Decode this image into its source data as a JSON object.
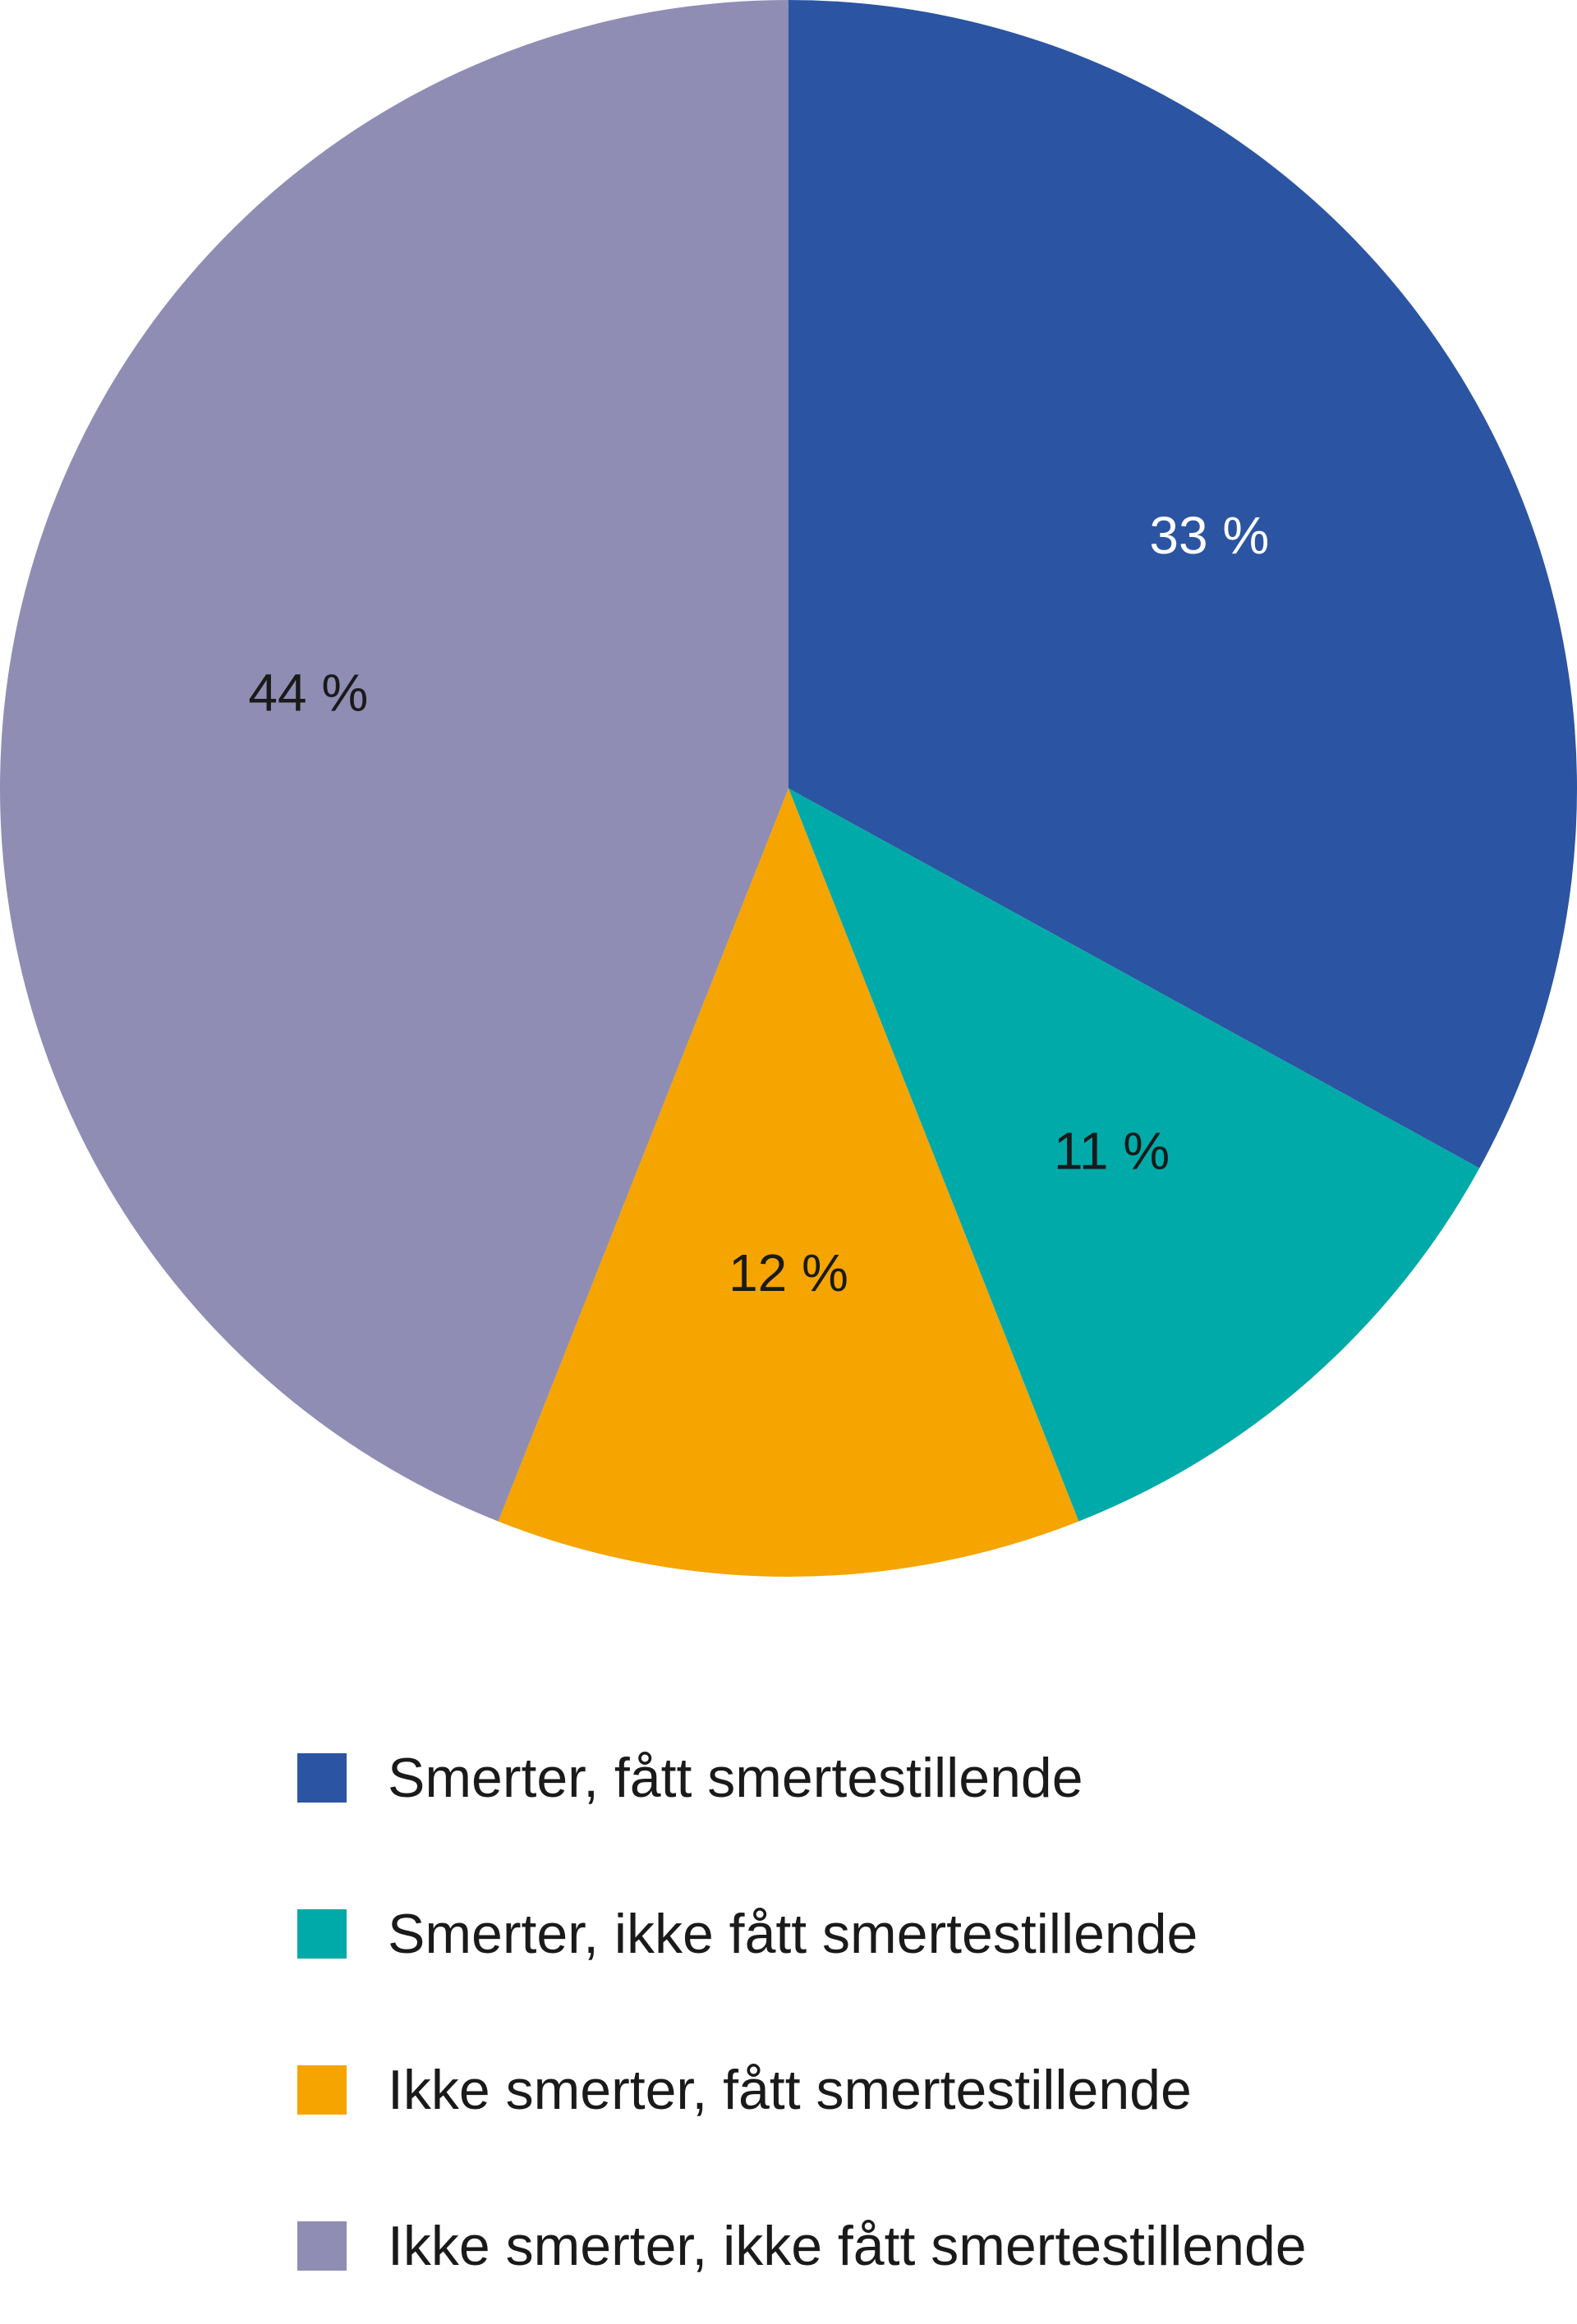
{
  "chart_data": {
    "type": "pie",
    "title": "",
    "start_angle_deg": 0,
    "direction": "clockwise",
    "series": [
      {
        "name": "Smerter, fått smertestillende",
        "value": 33,
        "label": "33 %",
        "color": "#2b54a3",
        "label_color": "#ffffff"
      },
      {
        "name": "Smerter, ikke fått smertestillende",
        "value": 11,
        "label": "11 %",
        "color": "#00aaa8",
        "label_color": "#1a1a1a"
      },
      {
        "name": "Ikke smerter, fått smertestillende",
        "value": 12,
        "label": "12 %",
        "color": "#f5a400",
        "label_color": "#1a1a1a"
      },
      {
        "name": "Ikke smerter, ikke fått smertestillende",
        "value": 44,
        "label": "44 %",
        "color": "#8f8db4",
        "label_color": "#1a1a1a"
      }
    ],
    "legend_position": "bottom"
  }
}
